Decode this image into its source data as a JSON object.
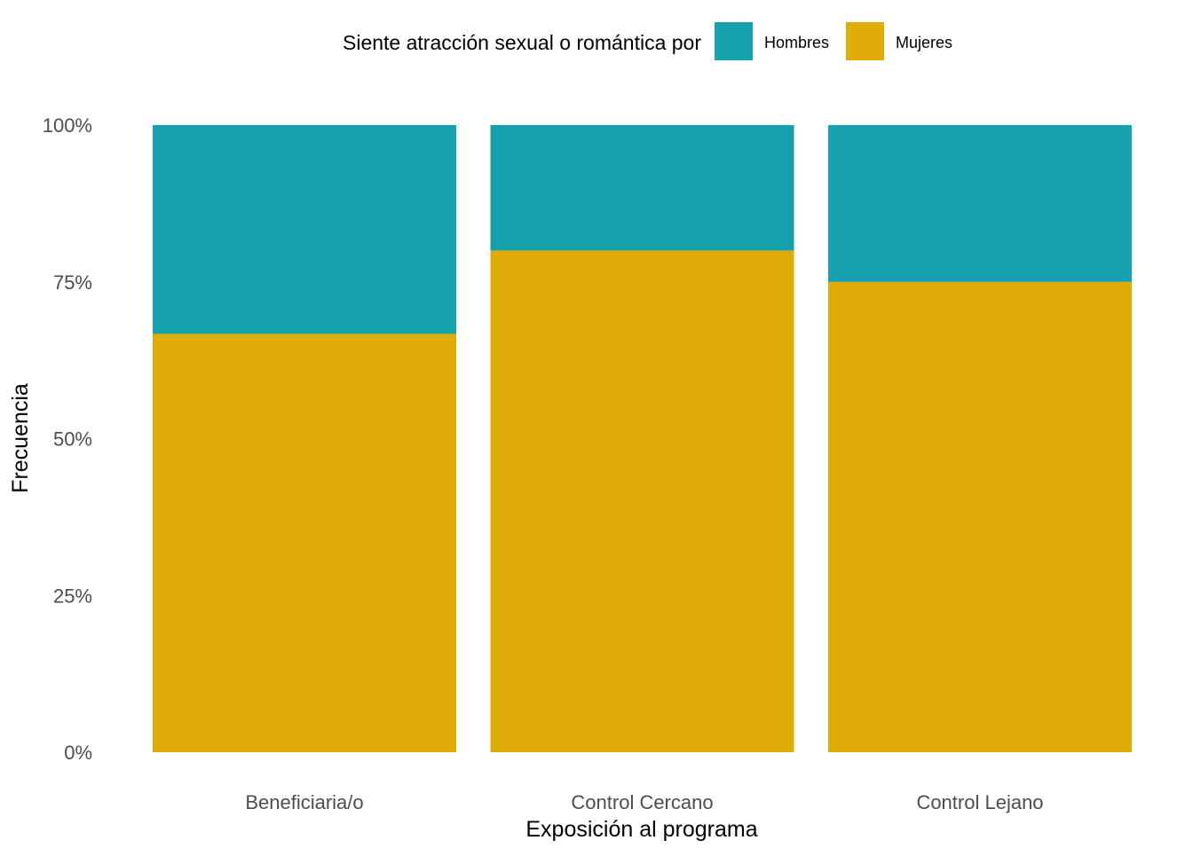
{
  "chart_data": {
    "type": "bar",
    "stacked": true,
    "normalized": true,
    "categories": [
      "Beneficiaria/o",
      "Control Cercano",
      "Control Lejano"
    ],
    "series": [
      {
        "name": "Mujeres",
        "color": "#E0AC07",
        "values": [
          66.7,
          80.0,
          75.0
        ]
      },
      {
        "name": "Hombres",
        "color": "#16A1AF",
        "values": [
          33.3,
          20.0,
          25.0
        ]
      }
    ],
    "ylim": [
      0,
      100
    ],
    "yticks": [
      0,
      25,
      50,
      75,
      100
    ],
    "ytick_labels": [
      "0%",
      "25%",
      "50%",
      "75%",
      "100%"
    ],
    "xlabel": "Exposición al programa",
    "ylabel": "Frecuencia",
    "legend": {
      "title": "Siente atracción sexual o romántica por",
      "position": "top",
      "entries": [
        {
          "label": "Hombres",
          "color": "#16A1AF"
        },
        {
          "label": "Mujeres",
          "color": "#E0AC07"
        }
      ]
    },
    "grid": false
  }
}
